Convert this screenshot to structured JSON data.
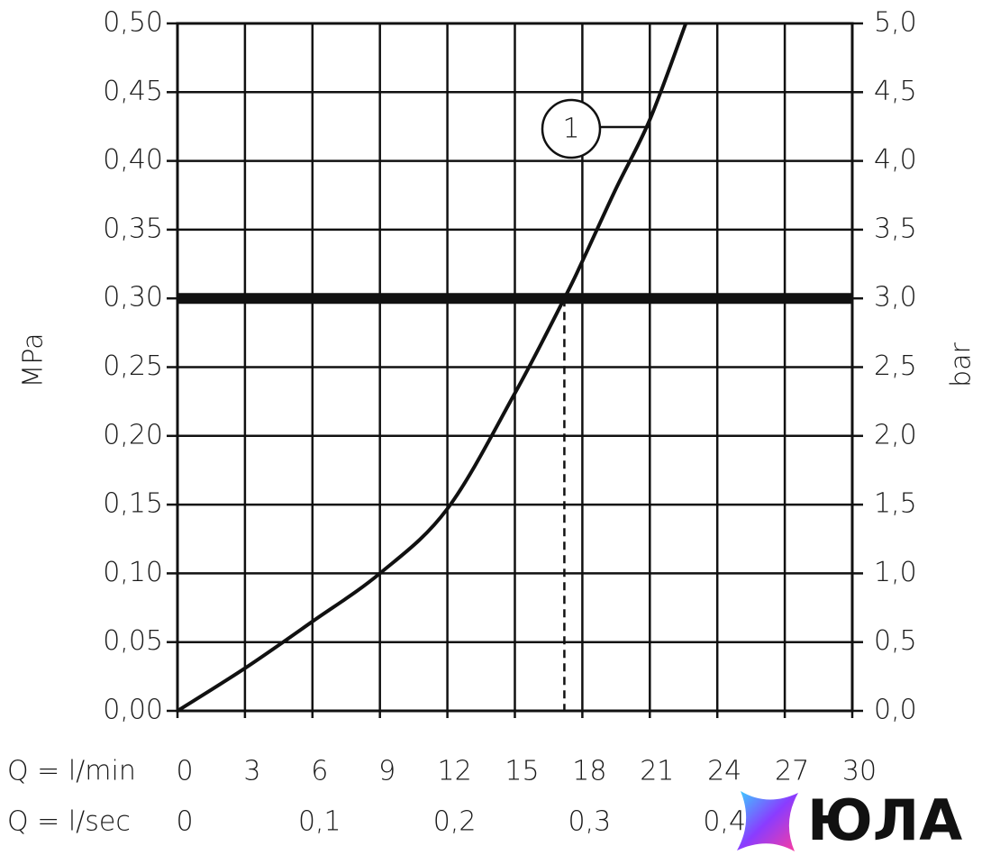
{
  "chart_data": {
    "type": "line",
    "y_label": "MPa",
    "y2_label": "bar",
    "x_label": "Q = l/min",
    "x2_label": "Q = l/sec",
    "x": [
      0,
      3,
      6,
      9,
      12,
      15,
      17.2,
      18,
      19.5,
      21,
      22.6
    ],
    "values": [
      0,
      0.031,
      0.065,
      0.1,
      0.147,
      0.231,
      0.3,
      0.327,
      0.38,
      0.43,
      0.5
    ],
    "color": "#111111",
    "annotation": "1",
    "reference_y": 0.3,
    "reference_x": 17.2,
    "xlim": [
      0,
      30
    ],
    "xticks": [
      0,
      3,
      6,
      9,
      12,
      15,
      18,
      21,
      24,
      27,
      30
    ],
    "x2lim": [
      0,
      0.5
    ],
    "x2ticks": [
      0,
      {
        "value": 0.1,
        "label": "0,1"
      },
      {
        "value": 0.2,
        "label": "0,2"
      },
      {
        "value": 0.3,
        "label": "0,3"
      },
      {
        "value": 0.4,
        "label": "0,4"
      }
    ],
    "ylim": [
      0,
      0.5
    ],
    "yticks": [
      {
        "value": 0,
        "label": "0,00"
      },
      {
        "value": 0.05,
        "label": "0,05"
      },
      {
        "value": 0.1,
        "label": "0,10"
      },
      {
        "value": 0.15,
        "label": "0,15"
      },
      {
        "value": 0.2,
        "label": "0,20"
      },
      {
        "value": 0.25,
        "label": "0,25"
      },
      {
        "value": 0.3,
        "label": "0,30"
      },
      {
        "value": 0.35,
        "label": "0,35"
      },
      {
        "value": 0.4,
        "label": "0,40"
      },
      {
        "value": 0.45,
        "label": "0,45"
      },
      {
        "value": 0.5,
        "label": "0,50"
      }
    ],
    "y2lim": [
      0,
      5
    ],
    "y2ticks": [
      {
        "value": 0,
        "label": "0,0"
      },
      {
        "value": 0.5,
        "label": "0,5"
      },
      {
        "value": 1,
        "label": "1,0"
      },
      {
        "value": 1.5,
        "label": "1,5"
      },
      {
        "value": 2,
        "label": "2,0"
      },
      {
        "value": 2.5,
        "label": "2,5"
      },
      {
        "value": 3,
        "label": "3,0"
      },
      {
        "value": 3.5,
        "label": "3,5"
      },
      {
        "value": 4,
        "label": "4,0"
      },
      {
        "value": 4.5,
        "label": "4,5"
      },
      {
        "value": 5,
        "label": "5,0"
      }
    ],
    "grid": true
  },
  "watermark": "ЮЛА"
}
